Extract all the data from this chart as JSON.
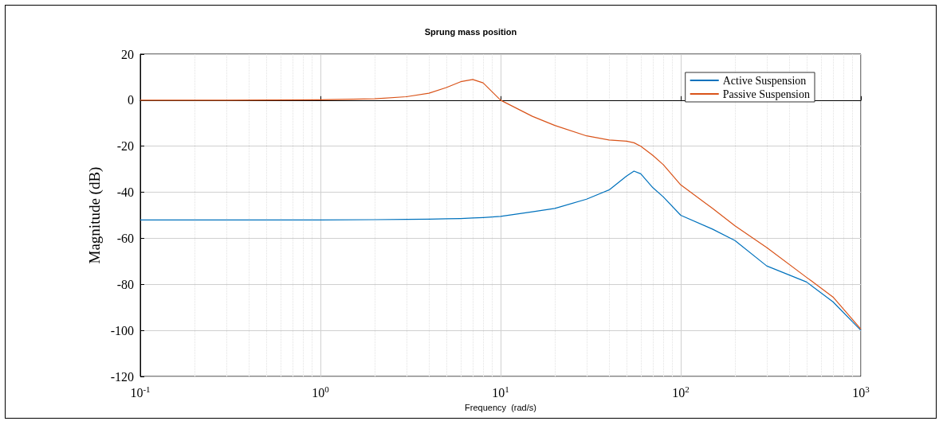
{
  "chart_data": {
    "type": "line",
    "title": "Sprung mass position",
    "xlabel": "Frequency  (rad/s)",
    "ylabel": "Magnitude (dB)",
    "log": "x",
    "grid": true,
    "legend": "top right",
    "marker": "none",
    "line_style": "solid",
    "xlim": [
      0.1,
      1000
    ],
    "xticks": [
      {
        "value": 0.1,
        "label": "10$^{-1}$"
      },
      {
        "value": 1,
        "label": "10$^{0}$"
      },
      {
        "value": 10,
        "label": "10$^{1}$"
      },
      {
        "value": 100,
        "label": "10$^{2}$"
      },
      {
        "value": 1000,
        "label": "10$^{3}$"
      }
    ],
    "ylim": [
      -120,
      20
    ],
    "yticks": [
      -120,
      -100,
      -80,
      -60,
      -40,
      -20,
      0,
      20
    ],
    "x": [
      0.1,
      0.3,
      1,
      2,
      3,
      4,
      5,
      6,
      7,
      8,
      10,
      15,
      20,
      30,
      40,
      50,
      55,
      60,
      70,
      80,
      100,
      150,
      200,
      300,
      500,
      700,
      1000
    ],
    "series": [
      {
        "name": "Active Suspension",
        "color": "#0072bd",
        "values": [
          -52,
          -52,
          -52,
          -51.9,
          -51.8,
          -51.7,
          -51.5,
          -51.4,
          -51.2,
          -51,
          -50.5,
          -48.5,
          -47,
          -43,
          -39,
          -33,
          -30.8,
          -32,
          -38,
          -42,
          -50,
          -56,
          -61,
          -72,
          -79,
          -87.6,
          -100
        ]
      },
      {
        "name": "Passive Suspension",
        "color": "#d95319",
        "values": [
          0,
          0,
          0.2,
          0.6,
          1.5,
          3,
          5.5,
          8,
          9,
          7.5,
          0,
          -7,
          -11,
          -15.5,
          -17.3,
          -17.8,
          -18.5,
          -20,
          -24,
          -28,
          -36.8,
          -47,
          -54.6,
          -64,
          -77,
          -85.5,
          -99.5
        ]
      }
    ]
  }
}
